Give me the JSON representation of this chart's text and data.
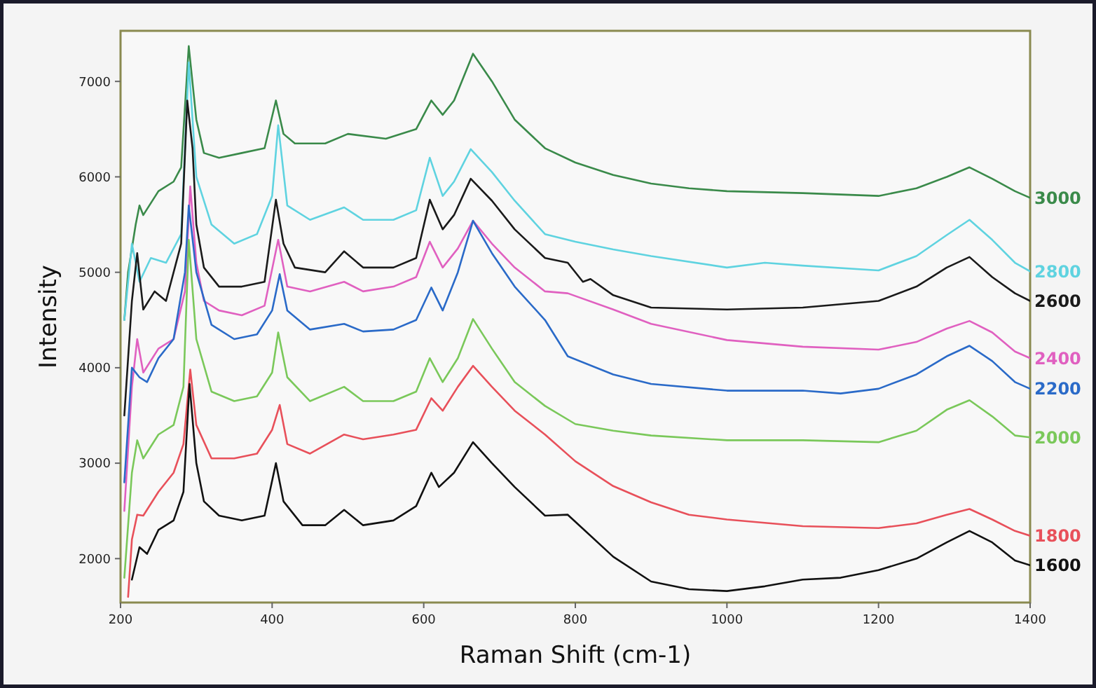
{
  "chart_data": {
    "type": "line",
    "xlabel": "Raman Shift (cm-1)",
    "ylabel": "Intensity",
    "xlim": [
      200,
      1400
    ],
    "ylim": [
      1540,
      7530
    ],
    "xticks": [
      200,
      400,
      600,
      800,
      1000,
      1200,
      1400
    ],
    "yticks": [
      2000,
      3000,
      4000,
      5000,
      6000,
      7000
    ],
    "grid": false,
    "marker": "none",
    "line_style": "solid",
    "series": [
      {
        "name": "3000",
        "color": "#3a8a4a",
        "x": [
          205,
          210,
          220,
          225,
          230,
          250,
          270,
          280,
          290,
          300,
          310,
          330,
          360,
          390,
          405,
          415,
          430,
          470,
          500,
          550,
          590,
          610,
          625,
          640,
          665,
          690,
          720,
          760,
          800,
          850,
          900,
          950,
          1000,
          1100,
          1200,
          1250,
          1290,
          1320,
          1350,
          1380,
          1400
        ],
        "values": [
          4500,
          5000,
          5500,
          5700,
          5600,
          5850,
          5950,
          6100,
          7370,
          6600,
          6250,
          6200,
          6250,
          6300,
          6800,
          6450,
          6350,
          6350,
          6450,
          6400,
          6500,
          6800,
          6650,
          6800,
          7290,
          7000,
          6600,
          6300,
          6150,
          6020,
          5930,
          5880,
          5850,
          5830,
          5800,
          5880,
          6000,
          6100,
          5980,
          5850,
          5780
        ]
      },
      {
        "name": "2800",
        "color": "#5fd3e0",
        "x": [
          205,
          215,
          225,
          240,
          260,
          280,
          290,
          300,
          320,
          350,
          380,
          400,
          408,
          420,
          450,
          495,
          520,
          560,
          590,
          608,
          625,
          640,
          662,
          690,
          720,
          760,
          800,
          850,
          900,
          1000,
          1050,
          1100,
          1200,
          1250,
          1290,
          1320,
          1350,
          1380,
          1400
        ],
        "values": [
          4500,
          5300,
          4900,
          5150,
          5100,
          5400,
          7200,
          6000,
          5500,
          5300,
          5400,
          5800,
          6540,
          5700,
          5550,
          5680,
          5550,
          5550,
          5650,
          6200,
          5800,
          5950,
          6290,
          6050,
          5750,
          5400,
          5320,
          5240,
          5170,
          5050,
          5100,
          5070,
          5020,
          5170,
          5390,
          5550,
          5340,
          5100,
          5010
        ]
      },
      {
        "name": "2600",
        "color": "#1a1a1a",
        "x": [
          205,
          215,
          222,
          230,
          245,
          260,
          280,
          288,
          295,
          300,
          310,
          330,
          360,
          390,
          405,
          415,
          430,
          470,
          495,
          520,
          560,
          590,
          608,
          625,
          640,
          662,
          690,
          720,
          760,
          790,
          810,
          820,
          850,
          900,
          1000,
          1100,
          1200,
          1250,
          1290,
          1320,
          1350,
          1380,
          1400
        ],
        "values": [
          3500,
          4700,
          5200,
          4610,
          4800,
          4700,
          5300,
          6800,
          6300,
          5500,
          5050,
          4850,
          4850,
          4900,
          5760,
          5300,
          5050,
          5000,
          5220,
          5050,
          5050,
          5150,
          5760,
          5450,
          5600,
          5980,
          5750,
          5450,
          5150,
          5100,
          4900,
          4930,
          4760,
          4630,
          4610,
          4630,
          4700,
          4850,
          5050,
          5160,
          4950,
          4780,
          4700
        ]
      },
      {
        "name": "2400",
        "color": "#e060c0",
        "x": [
          205,
          215,
          222,
          230,
          250,
          270,
          285,
          292,
          300,
          310,
          330,
          360,
          390,
          408,
          420,
          450,
          495,
          520,
          560,
          590,
          608,
          625,
          645,
          665,
          690,
          720,
          760,
          790,
          850,
          900,
          1000,
          1100,
          1200,
          1250,
          1290,
          1320,
          1350,
          1380,
          1400
        ],
        "values": [
          2500,
          3800,
          4300,
          3950,
          4200,
          4300,
          4800,
          5900,
          5100,
          4700,
          4600,
          4550,
          4650,
          5340,
          4850,
          4800,
          4900,
          4800,
          4850,
          4950,
          5320,
          5050,
          5250,
          5540,
          5300,
          5050,
          4800,
          4780,
          4610,
          4460,
          4290,
          4220,
          4190,
          4270,
          4410,
          4490,
          4370,
          4170,
          4100
        ]
      },
      {
        "name": "2200",
        "color": "#2a6ac8",
        "x": [
          205,
          215,
          225,
          235,
          250,
          270,
          285,
          290,
          300,
          320,
          350,
          380,
          400,
          410,
          420,
          450,
          495,
          520,
          560,
          590,
          610,
          625,
          645,
          665,
          690,
          720,
          760,
          790,
          850,
          900,
          1000,
          1100,
          1150,
          1200,
          1250,
          1290,
          1320,
          1350,
          1380,
          1400
        ],
        "values": [
          2800,
          4000,
          3900,
          3850,
          4100,
          4300,
          5000,
          5700,
          5000,
          4450,
          4300,
          4350,
          4600,
          4980,
          4600,
          4400,
          4460,
          4380,
          4400,
          4500,
          4840,
          4600,
          5000,
          5540,
          5200,
          4850,
          4500,
          4120,
          3930,
          3830,
          3760,
          3760,
          3730,
          3780,
          3930,
          4120,
          4230,
          4070,
          3850,
          3780
        ]
      },
      {
        "name": "2000",
        "color": "#7ac85a",
        "x": [
          205,
          215,
          222,
          230,
          250,
          270,
          283,
          290,
          300,
          320,
          350,
          380,
          400,
          408,
          420,
          450,
          495,
          520,
          560,
          590,
          608,
          625,
          645,
          665,
          690,
          720,
          760,
          800,
          850,
          900,
          1000,
          1100,
          1200,
          1250,
          1290,
          1320,
          1350,
          1380,
          1400
        ],
        "values": [
          1800,
          2900,
          3240,
          3050,
          3300,
          3400,
          3800,
          5340,
          4300,
          3750,
          3650,
          3700,
          3950,
          4370,
          3900,
          3650,
          3800,
          3650,
          3650,
          3750,
          4100,
          3850,
          4100,
          4510,
          4200,
          3850,
          3600,
          3410,
          3340,
          3290,
          3240,
          3240,
          3220,
          3340,
          3560,
          3660,
          3490,
          3290,
          3270
        ]
      },
      {
        "name": "1800",
        "color": "#e8505a",
        "x": [
          210,
          215,
          222,
          230,
          250,
          270,
          283,
          292,
          300,
          320,
          350,
          380,
          400,
          410,
          420,
          450,
          495,
          520,
          560,
          590,
          610,
          625,
          645,
          665,
          690,
          720,
          760,
          800,
          850,
          900,
          950,
          1000,
          1100,
          1200,
          1250,
          1290,
          1320,
          1350,
          1380,
          1400
        ],
        "values": [
          1600,
          2200,
          2460,
          2450,
          2700,
          2900,
          3200,
          3980,
          3400,
          3050,
          3050,
          3100,
          3350,
          3610,
          3200,
          3100,
          3300,
          3250,
          3300,
          3350,
          3680,
          3550,
          3800,
          4020,
          3800,
          3550,
          3300,
          3020,
          2760,
          2590,
          2460,
          2410,
          2340,
          2320,
          2370,
          2460,
          2520,
          2410,
          2290,
          2240
        ]
      },
      {
        "name": "1600",
        "color": "#111111",
        "x": [
          215,
          225,
          235,
          250,
          270,
          283,
          291,
          300,
          310,
          330,
          360,
          390,
          405,
          415,
          440,
          470,
          495,
          520,
          560,
          590,
          610,
          620,
          640,
          665,
          690,
          720,
          760,
          790,
          850,
          900,
          950,
          1000,
          1050,
          1100,
          1150,
          1200,
          1250,
          1290,
          1320,
          1350,
          1380,
          1400
        ],
        "values": [
          1780,
          2120,
          2050,
          2300,
          2400,
          2700,
          3830,
          3000,
          2600,
          2450,
          2400,
          2450,
          3000,
          2600,
          2350,
          2350,
          2510,
          2350,
          2400,
          2550,
          2900,
          2750,
          2900,
          3220,
          3000,
          2750,
          2450,
          2460,
          2020,
          1760,
          1680,
          1660,
          1710,
          1780,
          1800,
          1880,
          2000,
          2170,
          2290,
          2170,
          1980,
          1930
        ]
      }
    ]
  }
}
